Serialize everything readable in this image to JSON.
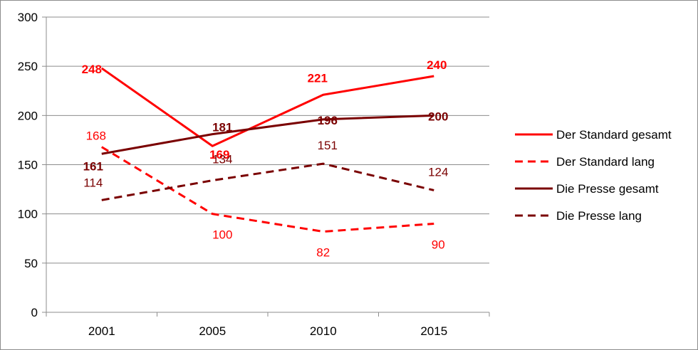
{
  "chart_data": {
    "type": "line",
    "title": "",
    "xlabel": "",
    "ylabel": "",
    "categories": [
      "2001",
      "2005",
      "2010",
      "2015"
    ],
    "ylim": [
      0,
      300
    ],
    "yticks": [
      0,
      50,
      100,
      150,
      200,
      250,
      300
    ],
    "grid": "horizontal",
    "legend_position": "right",
    "series": [
      {
        "name": "Der Standard gesamt",
        "values": [
          248,
          169,
          221,
          240
        ],
        "color": "#ff0000",
        "dash": "solid",
        "label_style": "bold",
        "labels": [
          "248",
          "169",
          "221",
          "240"
        ]
      },
      {
        "name": "Der Standard lang",
        "values": [
          168,
          100,
          82,
          90
        ],
        "color": "#ff0000",
        "dash": "dashed",
        "label_style": "normal",
        "labels": [
          "168",
          "100",
          "82",
          "90"
        ]
      },
      {
        "name": "Die Presse gesamt",
        "values": [
          161,
          181,
          196,
          200
        ],
        "color": "#7a0000",
        "dash": "solid",
        "label_style": "bold",
        "labels": [
          "161",
          "181",
          "196",
          "200"
        ]
      },
      {
        "name": "Die Presse lang",
        "values": [
          114,
          134,
          151,
          124
        ],
        "color": "#7a0000",
        "dash": "dashed",
        "label_style": "normal",
        "labels": [
          "114",
          "134",
          "151",
          "124"
        ]
      }
    ]
  }
}
